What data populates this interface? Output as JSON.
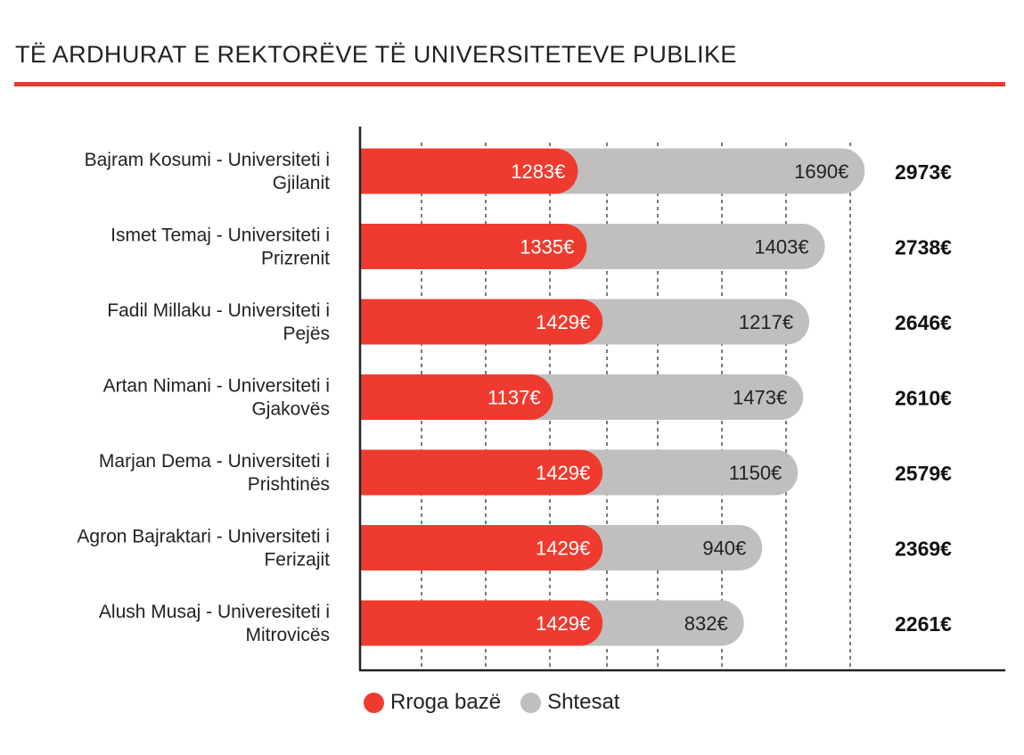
{
  "title": "TË ARDHURAT E REKTORËVE TË UNIVERSITETEVE PUBLIKE",
  "colors": {
    "accent": "#e8382f",
    "base": "#ef3b2f",
    "extra": "#c1bebe",
    "text": "#222222"
  },
  "legend": [
    {
      "label": "Rroga bazë",
      "color": "#ef3b2f"
    },
    {
      "label": "Shtesat",
      "color": "#c1bebe"
    }
  ],
  "chart_data": {
    "type": "bar",
    "orientation": "horizontal",
    "stacked": true,
    "categories": [
      [
        "Bajram Kosumi - Universiteti i",
        "Gjilanit"
      ],
      [
        "Ismet Temaj - Universiteti i",
        "Prizrenit"
      ],
      [
        "Fadil Millaku - Universiteti i",
        "Pejës"
      ],
      [
        "Artan Nimani - Universiteti i",
        "Gjakovës"
      ],
      [
        "Marjan Dema - Universiteti i",
        "Prishtinës"
      ],
      [
        "Agron Bajraktari - Universiteti i",
        "Ferizajit"
      ],
      [
        "Alush Musaj - Univeresiteti i",
        "Mitrovicës"
      ]
    ],
    "series": [
      {
        "name": "Rroga bazë",
        "values": [
          1283,
          1335,
          1429,
          1137,
          1429,
          1429,
          1429
        ],
        "labels": [
          "1283€",
          "1335€",
          "1429€",
          "1137€",
          "1429€",
          "1429€",
          "1429€"
        ]
      },
      {
        "name": "Shtesat",
        "values": [
          1690,
          1403,
          1217,
          1473,
          1150,
          940,
          832
        ],
        "labels": [
          "1690€",
          "1403€",
          "1217€",
          "1473€",
          "1150€",
          "940€",
          "832€"
        ]
      }
    ],
    "totals": [
      2973,
      2738,
      2646,
      2610,
      2579,
      2369,
      2261
    ],
    "total_labels": [
      "2973€",
      "2738€",
      "2646€",
      "2610€",
      "2579€",
      "2369€",
      "2261€"
    ],
    "xlim": [
      0,
      3000
    ],
    "grid": "vertical dashed",
    "legend_position": "bottom"
  }
}
